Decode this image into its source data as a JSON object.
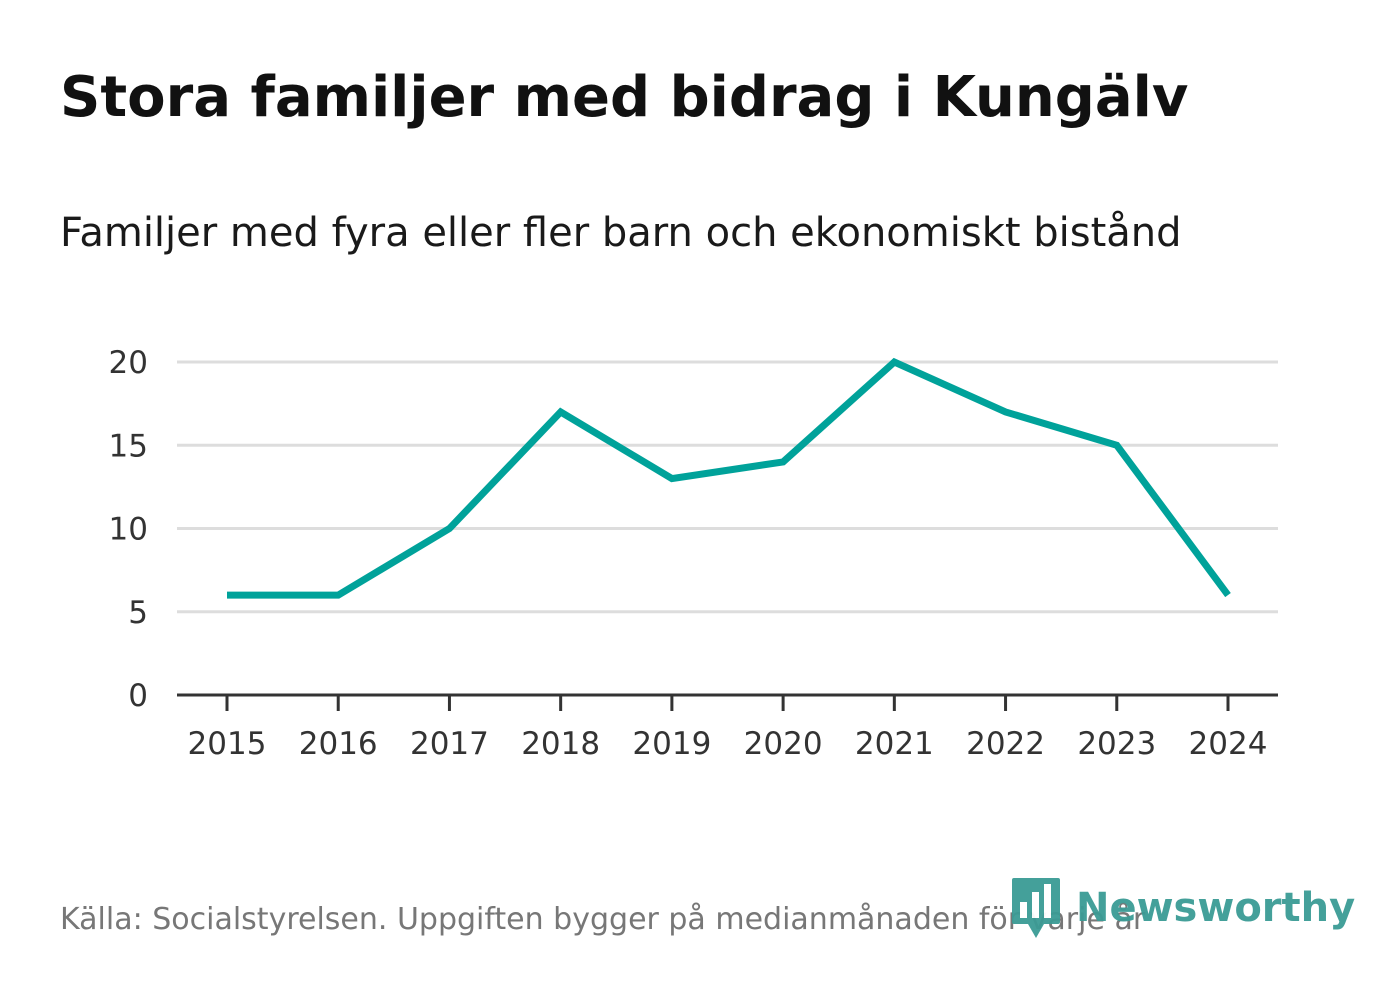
{
  "chart_data": {
    "type": "line",
    "title": "Stora familjer med bidrag i Kungälv",
    "subtitle": "Familjer med fyra eller fler barn och ekonomiskt bistånd",
    "x": [
      "2015",
      "2016",
      "2017",
      "2018",
      "2019",
      "2020",
      "2021",
      "2022",
      "2023",
      "2024"
    ],
    "series": [
      {
        "name": "Familjer med fyra eller fler barn och ekonomiskt bistånd",
        "values": [
          6,
          6,
          10,
          17,
          13,
          14,
          20,
          17,
          15,
          6
        ]
      }
    ],
    "yticks": [
      0,
      5,
      10,
      15,
      20
    ],
    "ylim": [
      0,
      20
    ],
    "xlabel": "",
    "ylabel": "",
    "grid": true,
    "legend": "none",
    "line_color": "#00a29a",
    "grid_color": "#dddddd",
    "axis_color": "#333333"
  },
  "footer": {
    "source": "Källa: Socialstyrelsen. Uppgiften bygger på medianmånaden för varje år",
    "logo_text": "Newsworthy",
    "logo_color": "#3b9b95",
    "logo_icon": "newsworthy-bar-chart-icon"
  }
}
